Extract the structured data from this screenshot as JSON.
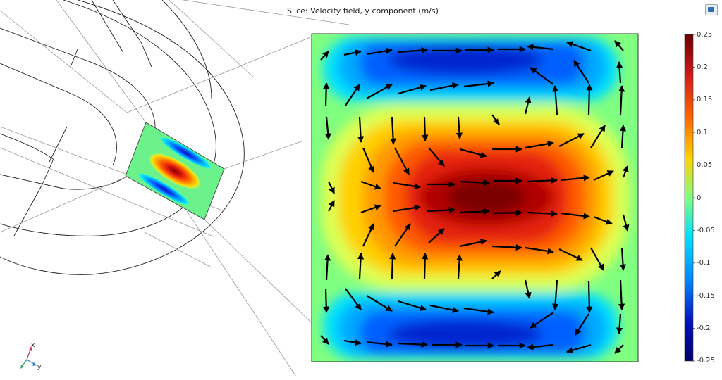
{
  "title": "Slice: Velocity field, y component (m/s)",
  "colorbar": {
    "max": 0.25,
    "min": -0.25,
    "ticks": [
      "0.25",
      "0.2",
      "0.15",
      "0.1",
      "0.05",
      "0",
      "-0.05",
      "-0.1",
      "-0.15",
      "-0.2",
      "-0.25"
    ],
    "colors": [
      "#7a0000",
      "#d11d1d",
      "#ff6a00",
      "#ffd400",
      "#7fff7f",
      "#00e5ff",
      "#0090ff",
      "#0010c8",
      "#00007a"
    ]
  },
  "axes_triad": {
    "x_label": "x",
    "y_label": "y"
  },
  "view_button": {
    "icon": "camera-view-icon"
  }
}
